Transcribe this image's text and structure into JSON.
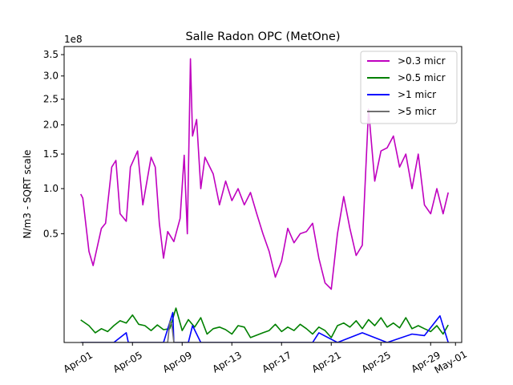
{
  "chart_data": {
    "type": "line",
    "title": "Salle Radon OPC (MetOne)",
    "xlabel": "",
    "ylabel": "N/m3 - SQRT scale",
    "offset_text": "1e8",
    "y_scale": "sqrt",
    "y_scale_factor": 100000000,
    "ylim": [
      0,
      3.7
    ],
    "y_ticks": [
      0.5,
      1.0,
      1.5,
      2.0,
      2.5,
      3.0,
      3.5
    ],
    "y_tick_labels": [
      "0.5",
      "1.0",
      "1.5",
      "2.0",
      "2.5",
      "3.0",
      "3.5"
    ],
    "xlim": [
      "2024-03-30T12:00",
      "2024-05-01T12:00"
    ],
    "x_ticks": [
      "2024-04-01",
      "2024-04-05",
      "2024-04-09",
      "2024-04-13",
      "2024-04-17",
      "2024-04-21",
      "2024-04-25",
      "2024-04-29",
      "2024-05-01"
    ],
    "x_tick_labels": [
      "Apr-01",
      "Apr-05",
      "Apr-09",
      "Apr-13",
      "Apr-17",
      "Apr-21",
      "Apr-25",
      "Apr-29",
      "May-01"
    ],
    "legend_position": "top-right",
    "grid": false,
    "series": [
      {
        "name": ">0.3 micr",
        "color": "#bf00bf",
        "x": [
          "2024-03-31T20:00",
          "2024-04-01T00:00",
          "2024-04-01T12:00",
          "2024-04-01T20:00",
          "2024-04-02T12:00",
          "2024-04-02T20:00",
          "2024-04-03T08:00",
          "2024-04-03T16:00",
          "2024-04-04T00:00",
          "2024-04-04T12:00",
          "2024-04-04T20:00",
          "2024-04-05T10:00",
          "2024-04-05T20:00",
          "2024-04-06T12:00",
          "2024-04-06T20:00",
          "2024-04-07T04:00",
          "2024-04-07T12:00",
          "2024-04-07T20:00",
          "2024-04-08T08:00",
          "2024-04-08T20:00",
          "2024-04-09T04:00",
          "2024-04-09T10:00",
          "2024-04-09T16:00",
          "2024-04-09T20:00",
          "2024-04-10T04:00",
          "2024-04-10T12:00",
          "2024-04-10T20:00",
          "2024-04-11T12:00",
          "2024-04-12T00:00",
          "2024-04-12T12:00",
          "2024-04-13T00:00",
          "2024-04-13T12:00",
          "2024-04-14T00:00",
          "2024-04-14T12:00",
          "2024-04-15T00:00",
          "2024-04-15T12:00",
          "2024-04-16T00:00",
          "2024-04-16T12:00",
          "2024-04-17T00:00",
          "2024-04-17T12:00",
          "2024-04-18T00:00",
          "2024-04-18T12:00",
          "2024-04-19T00:00",
          "2024-04-19T12:00",
          "2024-04-20T00:00",
          "2024-04-20T12:00",
          "2024-04-21T00:00",
          "2024-04-21T12:00",
          "2024-04-22T00:00",
          "2024-04-22T12:00",
          "2024-04-23T00:00",
          "2024-04-23T12:00",
          "2024-04-24T00:00",
          "2024-04-24T12:00",
          "2024-04-25T00:00",
          "2024-04-25T12:00",
          "2024-04-26T00:00",
          "2024-04-26T12:00",
          "2024-04-27T00:00",
          "2024-04-27T12:00",
          "2024-04-28T00:00",
          "2024-04-28T12:00",
          "2024-04-29T00:00",
          "2024-04-29T12:00",
          "2024-04-30T00:00",
          "2024-04-30T10:00"
        ],
        "y": [
          0.93,
          0.88,
          0.35,
          0.25,
          0.55,
          0.6,
          1.3,
          1.4,
          0.7,
          0.62,
          1.3,
          1.55,
          0.8,
          1.45,
          1.3,
          0.6,
          0.3,
          0.52,
          0.43,
          0.65,
          1.48,
          0.5,
          3.4,
          1.8,
          2.1,
          1.0,
          1.45,
          1.2,
          0.8,
          1.1,
          0.85,
          1.0,
          0.8,
          0.95,
          0.7,
          0.5,
          0.35,
          0.18,
          0.28,
          0.55,
          0.42,
          0.5,
          0.52,
          0.6,
          0.3,
          0.15,
          0.12,
          0.5,
          0.9,
          0.55,
          0.32,
          0.4,
          2.3,
          1.1,
          1.55,
          1.6,
          1.8,
          1.3,
          1.5,
          1.0,
          1.5,
          0.8,
          0.7,
          1.0,
          0.7,
          0.95
        ]
      },
      {
        "name": ">0.5 micr",
        "color": "#008000",
        "x": [
          "2024-03-31T20:00",
          "2024-04-01T12:00",
          "2024-04-02T00:00",
          "2024-04-02T12:00",
          "2024-04-03T00:00",
          "2024-04-03T12:00",
          "2024-04-04T00:00",
          "2024-04-04T12:00",
          "2024-04-05T00:00",
          "2024-04-05T12:00",
          "2024-04-06T00:00",
          "2024-04-06T12:00",
          "2024-04-07T00:00",
          "2024-04-07T12:00",
          "2024-04-08T00:00",
          "2024-04-08T12:00",
          "2024-04-09T00:00",
          "2024-04-09T12:00",
          "2024-04-10T00:00",
          "2024-04-10T12:00",
          "2024-04-11T00:00",
          "2024-04-11T12:00",
          "2024-04-12T00:00",
          "2024-04-12T12:00",
          "2024-04-13T00:00",
          "2024-04-13T12:00",
          "2024-04-14T00:00",
          "2024-04-14T12:00",
          "2024-04-15T12:00",
          "2024-04-16T00:00",
          "2024-04-16T12:00",
          "2024-04-17T00:00",
          "2024-04-17T12:00",
          "2024-04-18T00:00",
          "2024-04-18T12:00",
          "2024-04-19T00:00",
          "2024-04-19T12:00",
          "2024-04-20T00:00",
          "2024-04-20T12:00",
          "2024-04-21T00:00",
          "2024-04-21T12:00",
          "2024-04-22T00:00",
          "2024-04-22T12:00",
          "2024-04-23T00:00",
          "2024-04-23T12:00",
          "2024-04-24T00:00",
          "2024-04-24T12:00",
          "2024-04-25T00:00",
          "2024-04-25T12:00",
          "2024-04-26T00:00",
          "2024-04-26T12:00",
          "2024-04-27T00:00",
          "2024-04-27T12:00",
          "2024-04-28T00:00",
          "2024-04-28T12:00",
          "2024-04-29T00:00",
          "2024-04-29T12:00",
          "2024-04-30T00:00",
          "2024-04-30T10:00"
        ],
        "y": [
          0.0215,
          0.012,
          0.004,
          0.008,
          0.005,
          0.012,
          0.02,
          0.016,
          0.032,
          0.014,
          0.012,
          0.006,
          0.013,
          0.007,
          0.008,
          0.05,
          0.006,
          0.022,
          0.01,
          0.026,
          0.003,
          0.008,
          0.01,
          0.007,
          0.003,
          0.012,
          0.01,
          0.001,
          0.004,
          0.006,
          0.014,
          0.005,
          0.01,
          0.006,
          0.014,
          0.008,
          0.003,
          0.01,
          0.006,
          0.001,
          0.012,
          0.016,
          0.01,
          0.02,
          0.008,
          0.022,
          0.012,
          0.026,
          0.01,
          0.016,
          0.009,
          0.026,
          0.008,
          0.012,
          0.008,
          0.005,
          0.012,
          0.003,
          0.013
        ]
      },
      {
        "name": ">1 micr",
        "color": "#0000ff",
        "x": [
          "2024-03-31T20:00",
          "2024-04-01T12:00",
          "2024-04-02T12:00",
          "2024-04-03T12:00",
          "2024-04-04T12:00",
          "2024-04-04T16:00",
          "2024-04-05T12:00",
          "2024-04-06T12:00",
          "2024-04-07T12:00",
          "2024-04-08T06:00",
          "2024-04-08T08:00",
          "2024-04-08T12:00",
          "2024-04-09T12:00",
          "2024-04-09T20:00",
          "2024-04-10T12:00",
          "2024-04-11T12:00",
          "2024-04-13T12:00",
          "2024-04-15T12:00",
          "2024-04-17T12:00",
          "2024-04-19T12:00",
          "2024-04-20T00:00",
          "2024-04-21T12:00",
          "2024-04-23T12:00",
          "2024-04-25T12:00",
          "2024-04-27T12:00",
          "2024-04-28T12:00",
          "2024-04-29T18:00",
          "2024-04-30T10:00"
        ],
        "y": [
          0.0,
          0.0,
          0.0,
          0.0,
          0.004,
          0.0,
          0.0,
          0.0,
          0.0,
          0.038,
          0.0,
          0.0,
          0.0,
          0.012,
          0.0,
          0.0,
          0.0,
          0.0,
          0.0,
          0.0,
          0.004,
          0.0,
          0.004,
          0.0,
          0.003,
          0.002,
          0.03,
          0.0
        ]
      },
      {
        "name": ">5 micr",
        "color": "#707070",
        "x": [
          "2024-03-31T20:00",
          "2024-04-07T20:00",
          "2024-04-08T00:00",
          "2024-04-08T04:00",
          "2024-04-08T08:00",
          "2024-04-30T10:00"
        ],
        "y": [
          0.0,
          0.0,
          0.018,
          0.014,
          0.0,
          0.0
        ]
      }
    ]
  }
}
